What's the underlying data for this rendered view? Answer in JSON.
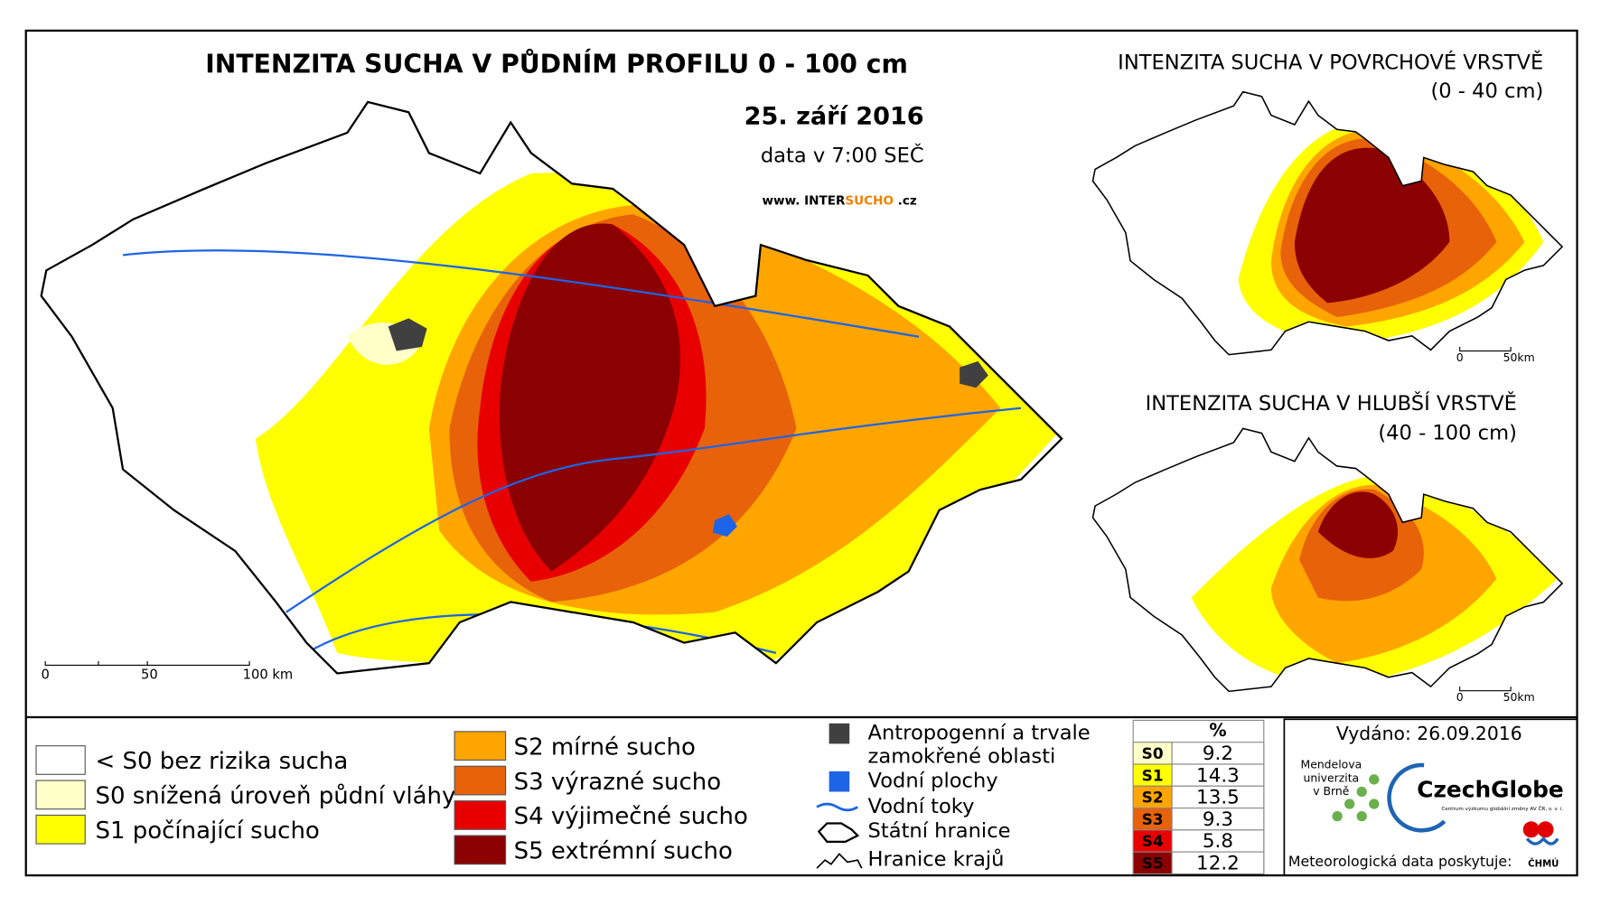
{
  "main_map": {
    "title": "INTENZITA SUCHA V PŮDNÍM PROFILU 0 - 100 cm",
    "date": "25. září 2016",
    "data_time": "data v 7:00 SEČ",
    "website": {
      "prefix": "www. INTER",
      "highlight": "SUCHO",
      "suffix": " .cz"
    },
    "scale_labels": [
      "0",
      "50",
      "100 km"
    ]
  },
  "inset_top": {
    "title": "INTENZITA SUCHA V POVRCHOVÉ VRSTVĚ",
    "depth": "(0 - 40 cm)",
    "scale_labels": [
      "0",
      "50km"
    ]
  },
  "inset_bottom": {
    "title": "INTENZITA SUCHA V HLUBŠÍ VRSTVĚ",
    "depth": "(40 - 100 cm)",
    "scale_labels": [
      "0",
      "50km"
    ]
  },
  "legend": {
    "classes": [
      {
        "label": "< S0 bez rizika sucha",
        "color": "#ffffff"
      },
      {
        "label": "S0 snížená úroveň půdní vláhy",
        "color": "#ffffc8"
      },
      {
        "label": "S1 počínající sucho",
        "color": "#ffff00"
      },
      {
        "label": "S2 mírné sucho",
        "color": "#ffa500"
      },
      {
        "label": "S3 výrazné sucho",
        "color": "#e8620a"
      },
      {
        "label": "S4 výjimečné sucho",
        "color": "#e80000"
      },
      {
        "label": "S5 extrémní sucho",
        "color": "#8b0000"
      }
    ],
    "features": [
      {
        "label": [
          "Antropogenní a trvale",
          "zamokřené oblasti"
        ],
        "symbol": "area",
        "color": "#404040"
      },
      {
        "label": [
          "Vodní plochy"
        ],
        "symbol": "area",
        "color": "#1e64e6"
      },
      {
        "label": [
          "Vodní toky"
        ],
        "symbol": "river",
        "color": "#1e64e6"
      },
      {
        "label": [
          "Státní hranice"
        ],
        "symbol": "border",
        "color": "#000000"
      },
      {
        "label": [
          "Hranice krajů"
        ],
        "symbol": "region",
        "color": "#000000"
      }
    ]
  },
  "stats_table": {
    "header": "%",
    "rows": [
      {
        "class": "S0",
        "percent": 9.2,
        "color": "#ffffc8"
      },
      {
        "class": "S1",
        "percent": 14.3,
        "color": "#ffff00"
      },
      {
        "class": "S2",
        "percent": 13.5,
        "color": "#ffa500"
      },
      {
        "class": "S3",
        "percent": 9.3,
        "color": "#e8620a"
      },
      {
        "class": "S4",
        "percent": 5.8,
        "color": "#e80000"
      },
      {
        "class": "S5",
        "percent": 12.2,
        "color": "#8b0000"
      }
    ]
  },
  "issued": "Vydáno: 26.09.2016",
  "logos": {
    "mendel": [
      "Mendelova",
      "univerzita",
      "v Brně"
    ],
    "czechglobe": "CzechGlobe",
    "czechglobe_sub": "Centrum výzkumu globální změny AV ČR, v. v. i.",
    "chmu": "ČHMÚ"
  },
  "data_provider": "Meteorologická data poskytuje:"
}
